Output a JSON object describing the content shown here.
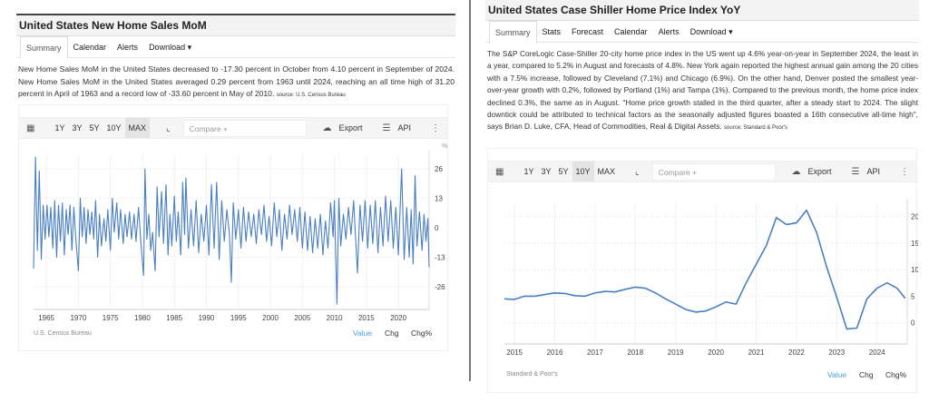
{
  "left": {
    "title": "United States New Home Sales MoM",
    "tabs": [
      "Summary",
      "Calendar",
      "Alerts",
      "Download ▾"
    ],
    "description": "New Home Sales MoM in the United States decreased to -17.30 percent in October from 4.10 percent in September of 2024. New Home Sales MoM in the United States averaged 0.29 percent from 1963 until 2024, reaching an all time high of 31.20 percent in April of 1963 and a record low of -33.60 percent in May of 2010.",
    "source": "source: U.S. Census Bureau",
    "toolbar": {
      "ranges": [
        "1Y",
        "3Y",
        "5Y",
        "10Y",
        "MAX"
      ],
      "selected": "MAX",
      "compare_placeholder": "Compare +",
      "export": "Export",
      "api": "API"
    },
    "footer": "U.S. Census Bureau",
    "modes": [
      "Value",
      "Chg",
      "Chg%"
    ],
    "active_mode": "Value"
  },
  "right": {
    "title": "United States Case Shiller Home Price Index YoY",
    "tabs": [
      "Summary",
      "Stats",
      "Forecast",
      "Calendar",
      "Alerts",
      "Download ▾"
    ],
    "description": "The S&P CoreLogic Case-Shiller 20-city home price index in the US went up 4.6% year-on-year in September 2024, the least in a year, compared to 5.2% in August and forecasts of 4.8%. New York again reported the highest annual gain among the 20 cities with a 7.5% increase, followed by Cleveland (7.1%) and Chicago (6.9%). On the other hand, Denver posted the smallest year-over-year growth with 0.2%, followed by Portland (1%) and Tampa (1%). Compared to the previous month, the home price index declined 0.3%, the same as in August. \"Home price growth stalled in the third quarter, after a steady start to 2024. The slight downtick could be attributed to technical factors as the seasonally adjusted figures boasted a 16th consecutive all-time high\", says Brian D. Luke, CFA, Head of Commodities, Real & Digital Assets.",
    "source": "source: Standard & Poor's",
    "toolbar": {
      "ranges": [
        "1Y",
        "3Y",
        "5Y",
        "10Y",
        "MAX"
      ],
      "selected": "10Y",
      "compare_placeholder": "Compare +",
      "export": "Export",
      "api": "API"
    },
    "footer": "Standard & Poor's",
    "modes": [
      "Value",
      "Chg",
      "Chg%"
    ],
    "active_mode": "Value"
  },
  "colors": {
    "line": "#4a7fc1",
    "active_mode": "#4a9fe8"
  },
  "chart_data": [
    {
      "type": "line",
      "unit": "%",
      "xlim": [
        1963,
        2024.8
      ],
      "ylim": [
        -36,
        32
      ],
      "yticks": [
        -26,
        -13,
        0,
        13,
        26
      ],
      "xticks": [
        1965,
        1970,
        1975,
        1980,
        1985,
        1990,
        1995,
        2000,
        2005,
        2010,
        2015,
        2020
      ],
      "points": [
        [
          1963.0,
          -18
        ],
        [
          1963.3,
          31.2
        ],
        [
          1963.6,
          -10
        ],
        [
          1963.9,
          25
        ],
        [
          1964.2,
          -14
        ],
        [
          1964.5,
          10
        ],
        [
          1964.8,
          -5
        ],
        [
          1965.1,
          10
        ],
        [
          1965.4,
          -4
        ],
        [
          1965.7,
          9
        ],
        [
          1966.0,
          -9
        ],
        [
          1966.3,
          12
        ],
        [
          1966.6,
          -13
        ],
        [
          1966.9,
          10
        ],
        [
          1967.2,
          -6
        ],
        [
          1967.5,
          11
        ],
        [
          1967.8,
          -12
        ],
        [
          1968.1,
          8
        ],
        [
          1968.4,
          -3
        ],
        [
          1968.7,
          10
        ],
        [
          1969.0,
          -10
        ],
        [
          1969.3,
          9
        ],
        [
          1969.6,
          -5
        ],
        [
          1970.0,
          -19
        ],
        [
          1970.3,
          13
        ],
        [
          1970.6,
          -4
        ],
        [
          1970.9,
          9
        ],
        [
          1971.2,
          -7
        ],
        [
          1971.5,
          8
        ],
        [
          1971.8,
          -3
        ],
        [
          1972.1,
          7
        ],
        [
          1972.4,
          -5
        ],
        [
          1972.7,
          12
        ],
        [
          1973.0,
          -13
        ],
        [
          1973.3,
          6
        ],
        [
          1973.6,
          -8
        ],
        [
          1974.0,
          4
        ],
        [
          1974.3,
          -6
        ],
        [
          1974.6,
          8
        ],
        [
          1975.0,
          -10
        ],
        [
          1975.3,
          13
        ],
        [
          1975.6,
          -2
        ],
        [
          1976.0,
          11
        ],
        [
          1976.3,
          -5
        ],
        [
          1976.6,
          8
        ],
        [
          1977.0,
          -7
        ],
        [
          1977.3,
          6
        ],
        [
          1977.6,
          -4
        ],
        [
          1978.0,
          7
        ],
        [
          1978.3,
          -5
        ],
        [
          1978.7,
          6
        ],
        [
          1979.0,
          -6
        ],
        [
          1979.4,
          9
        ],
        [
          1979.8,
          -8
        ],
        [
          1980.2,
          -21
        ],
        [
          1980.4,
          26
        ],
        [
          1980.7,
          -5
        ],
        [
          1981.0,
          6
        ],
        [
          1981.3,
          -10
        ],
        [
          1981.6,
          -2
        ],
        [
          1982.0,
          -19
        ],
        [
          1982.3,
          18
        ],
        [
          1982.6,
          -4
        ],
        [
          1983.0,
          16
        ],
        [
          1983.3,
          -7
        ],
        [
          1983.7,
          19
        ],
        [
          1984.0,
          -12
        ],
        [
          1984.3,
          6
        ],
        [
          1984.6,
          -8
        ],
        [
          1985.0,
          14
        ],
        [
          1985.3,
          -6
        ],
        [
          1985.6,
          7
        ],
        [
          1986.0,
          -12
        ],
        [
          1986.3,
          20
        ],
        [
          1986.6,
          -3
        ],
        [
          1986.8,
          22
        ],
        [
          1987.2,
          -9
        ],
        [
          1987.6,
          8
        ],
        [
          1988.0,
          -8
        ],
        [
          1988.4,
          12
        ],
        [
          1988.8,
          -11
        ],
        [
          1989.2,
          6
        ],
        [
          1989.6,
          -6
        ],
        [
          1990.0,
          10
        ],
        [
          1990.4,
          -12
        ],
        [
          1990.8,
          19
        ],
        [
          1991.2,
          -9
        ],
        [
          1991.6,
          20
        ],
        [
          1992.0,
          -14
        ],
        [
          1992.4,
          12
        ],
        [
          1992.8,
          -6
        ],
        [
          1993.2,
          8
        ],
        [
          1993.6,
          -3
        ],
        [
          1993.9,
          -24
        ],
        [
          1994.2,
          11
        ],
        [
          1994.6,
          -5
        ],
        [
          1995.0,
          8
        ],
        [
          1995.4,
          -9
        ],
        [
          1995.8,
          9
        ],
        [
          1996.2,
          -6
        ],
        [
          1996.6,
          7
        ],
        [
          1997.0,
          -4
        ],
        [
          1997.4,
          6
        ],
        [
          1997.8,
          -7
        ],
        [
          1998.2,
          8
        ],
        [
          1998.6,
          -3
        ],
        [
          1999.0,
          10
        ],
        [
          1999.4,
          -6
        ],
        [
          1999.8,
          5
        ],
        [
          2000.2,
          -8
        ],
        [
          2000.6,
          11
        ],
        [
          2001.0,
          -4
        ],
        [
          2001.4,
          8
        ],
        [
          2001.8,
          -10
        ],
        [
          2002.2,
          6
        ],
        [
          2002.6,
          -5
        ],
        [
          2003.0,
          10
        ],
        [
          2003.4,
          -3
        ],
        [
          2003.8,
          8
        ],
        [
          2004.2,
          -6
        ],
        [
          2004.6,
          9
        ],
        [
          2005.0,
          -9
        ],
        [
          2005.4,
          7
        ],
        [
          2005.8,
          -10
        ],
        [
          2006.2,
          5
        ],
        [
          2006.6,
          -11
        ],
        [
          2007.0,
          4
        ],
        [
          2007.4,
          -9
        ],
        [
          2007.8,
          6
        ],
        [
          2008.2,
          -12
        ],
        [
          2008.6,
          3
        ],
        [
          2009.0,
          -9
        ],
        [
          2009.4,
          11
        ],
        [
          2009.8,
          -4
        ],
        [
          2010.0,
          12
        ],
        [
          2010.4,
          -33.6
        ],
        [
          2010.7,
          13
        ],
        [
          2011.0,
          -8
        ],
        [
          2011.4,
          6
        ],
        [
          2011.8,
          -5
        ],
        [
          2012.2,
          9
        ],
        [
          2012.6,
          -3
        ],
        [
          2013.0,
          12
        ],
        [
          2013.3,
          -4
        ],
        [
          2013.6,
          -20
        ],
        [
          2014.0,
          10
        ],
        [
          2014.4,
          -6
        ],
        [
          2014.8,
          12
        ],
        [
          2015.2,
          -9
        ],
        [
          2015.6,
          10
        ],
        [
          2016.0,
          -7
        ],
        [
          2016.4,
          12
        ],
        [
          2016.8,
          -11
        ],
        [
          2017.2,
          9
        ],
        [
          2017.6,
          -8
        ],
        [
          2018.0,
          14
        ],
        [
          2018.4,
          -6
        ],
        [
          2018.8,
          12
        ],
        [
          2019.2,
          -9
        ],
        [
          2019.6,
          9
        ],
        [
          2020.0,
          -12
        ],
        [
          2020.5,
          26
        ],
        [
          2020.9,
          -14
        ],
        [
          2021.3,
          9
        ],
        [
          2021.7,
          -13
        ],
        [
          2022.0,
          8
        ],
        [
          2022.3,
          -16
        ],
        [
          2022.6,
          23
        ],
        [
          2022.9,
          -8
        ],
        [
          2023.3,
          7
        ],
        [
          2023.7,
          -10
        ],
        [
          2024.0,
          6
        ],
        [
          2024.3,
          -6
        ],
        [
          2024.6,
          4.1
        ],
        [
          2024.8,
          -17.3
        ]
      ]
    },
    {
      "type": "line",
      "unit": "%",
      "xlim": [
        2014.75,
        2024.75
      ],
      "ylim": [
        -4,
        22.5
      ],
      "yticks": [
        0,
        5,
        10,
        15,
        20
      ],
      "xticks": [
        2015,
        2016,
        2017,
        2018,
        2019,
        2020,
        2021,
        2022,
        2023,
        2024
      ],
      "points": [
        [
          2014.75,
          4.5
        ],
        [
          2015.0,
          4.4
        ],
        [
          2015.25,
          5.0
        ],
        [
          2015.5,
          5.0
        ],
        [
          2015.75,
          5.3
        ],
        [
          2016.0,
          5.6
        ],
        [
          2016.25,
          5.5
        ],
        [
          2016.5,
          5.1
        ],
        [
          2016.75,
          5.0
        ],
        [
          2017.0,
          5.6
        ],
        [
          2017.25,
          5.9
        ],
        [
          2017.5,
          5.8
        ],
        [
          2017.75,
          6.3
        ],
        [
          2018.0,
          6.7
        ],
        [
          2018.25,
          6.5
        ],
        [
          2018.5,
          5.6
        ],
        [
          2018.75,
          4.5
        ],
        [
          2019.0,
          3.5
        ],
        [
          2019.25,
          2.5
        ],
        [
          2019.5,
          2.0
        ],
        [
          2019.75,
          2.2
        ],
        [
          2020.0,
          3.0
        ],
        [
          2020.25,
          3.9
        ],
        [
          2020.5,
          3.5
        ],
        [
          2020.75,
          7.5
        ],
        [
          2021.0,
          11.0
        ],
        [
          2021.25,
          14.5
        ],
        [
          2021.5,
          19.8
        ],
        [
          2021.75,
          18.5
        ],
        [
          2022.0,
          18.8
        ],
        [
          2022.25,
          21.2
        ],
        [
          2022.5,
          17.0
        ],
        [
          2022.75,
          10.5
        ],
        [
          2023.0,
          4.8
        ],
        [
          2023.25,
          -1.2
        ],
        [
          2023.5,
          -1.0
        ],
        [
          2023.75,
          4.5
        ],
        [
          2024.0,
          6.5
        ],
        [
          2024.25,
          7.5
        ],
        [
          2024.5,
          6.5
        ],
        [
          2024.7,
          4.6
        ]
      ]
    }
  ]
}
